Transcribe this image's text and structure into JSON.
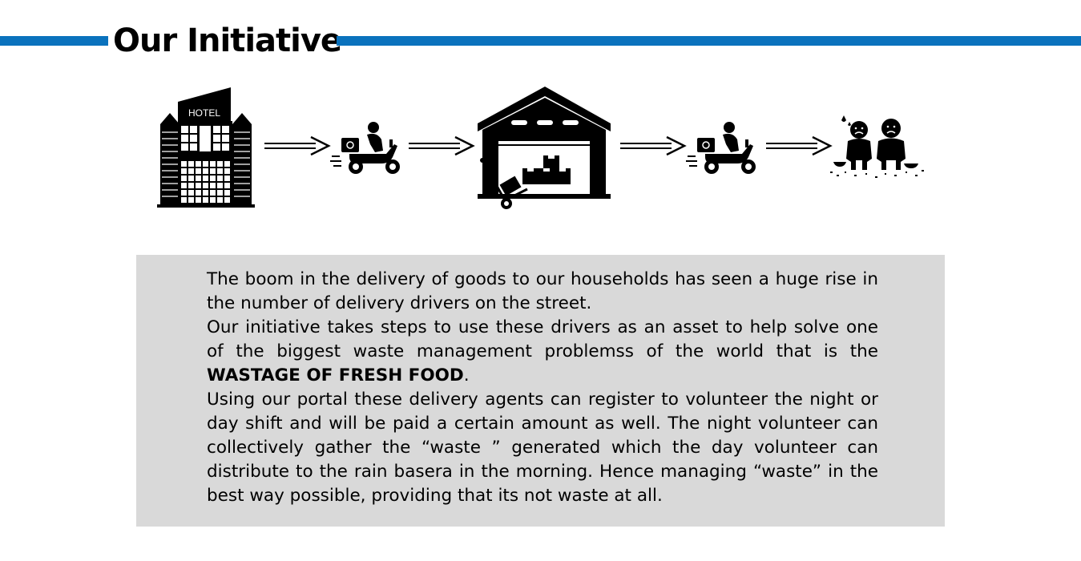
{
  "header": {
    "title": "Our Initiative",
    "accent_color": "#0a72bd"
  },
  "flow": {
    "steps": [
      {
        "icon": "hotel-building-icon",
        "label": "HOTEL"
      },
      {
        "icon": "arrow-right-icon"
      },
      {
        "icon": "delivery-scooter-icon"
      },
      {
        "icon": "arrow-right-icon"
      },
      {
        "icon": "warehouse-icon"
      },
      {
        "icon": "arrow-right-icon"
      },
      {
        "icon": "delivery-scooter-icon"
      },
      {
        "icon": "arrow-right-icon"
      },
      {
        "icon": "needy-people-icon"
      }
    ]
  },
  "body": {
    "paragraph_1": "The boom in the delivery of goods to our households has seen a huge rise in the number of delivery drivers on the street.",
    "paragraph_2_start": "Our initiative takes steps to use these drivers as an asset to help solve one of the biggest waste management problemss of the world that is the ",
    "paragraph_2_bold": "WASTAGE OF FRESH FOOD",
    "paragraph_2_end": ".",
    "paragraph_3": "Using our portal these delivery agents can register to volunteer the night or day shift and will be paid a certain amount as well. The night volunteer can collectively gather the “waste ” generated which the day volunteer can distribute to the rain basera in the morning. Hence managing “waste” in the best way possible, providing that its not waste at all.",
    "box_color": "#d9d9d9"
  }
}
